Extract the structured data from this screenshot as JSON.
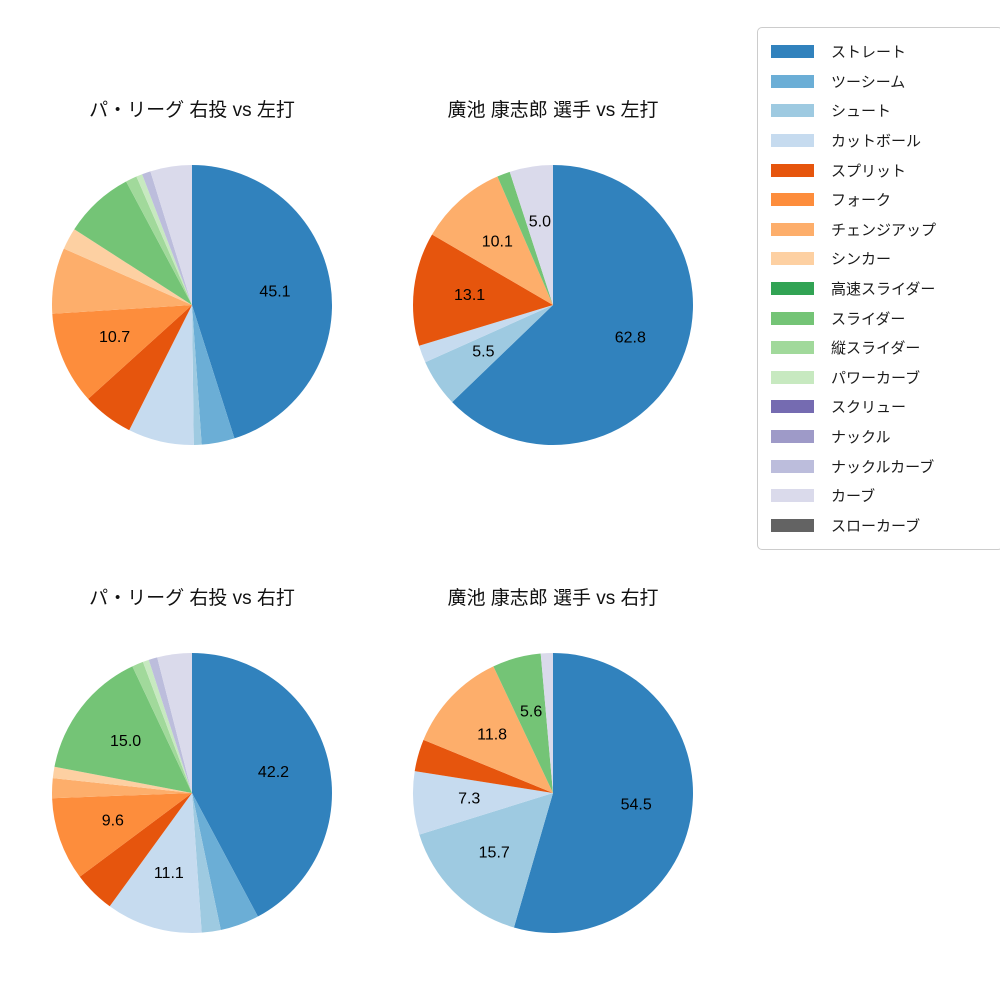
{
  "legend": {
    "items": [
      {
        "label": "ストレート",
        "color": "#3182bd"
      },
      {
        "label": "ツーシーム",
        "color": "#6baed6"
      },
      {
        "label": "シュート",
        "color": "#9ecae1"
      },
      {
        "label": "カットボール",
        "color": "#c6dbef"
      },
      {
        "label": "スプリット",
        "color": "#e6550d"
      },
      {
        "label": "フォーク",
        "color": "#fd8d3c"
      },
      {
        "label": "チェンジアップ",
        "color": "#fdae6b"
      },
      {
        "label": "シンカー",
        "color": "#fdd0a2"
      },
      {
        "label": "高速スライダー",
        "color": "#31a354"
      },
      {
        "label": "スライダー",
        "color": "#74c476"
      },
      {
        "label": "縦スライダー",
        "color": "#a1d99b"
      },
      {
        "label": "パワーカーブ",
        "color": "#c7e9c0"
      },
      {
        "label": "スクリュー",
        "color": "#756bb1"
      },
      {
        "label": "ナックル",
        "color": "#9e9ac8"
      },
      {
        "label": "ナックルカーブ",
        "color": "#bcbddc"
      },
      {
        "label": "カーブ",
        "color": "#dadaeb"
      },
      {
        "label": "スローカーブ",
        "color": "#636363"
      }
    ]
  },
  "chart_data": [
    {
      "type": "pie",
      "title": "パ・リーグ 右投 vs 左打",
      "start_angle": "top",
      "direction": "clockwise",
      "label_distance_ratio": 0.6,
      "slices": [
        {
          "name": "ストレート",
          "value": 45.1,
          "label": "45.1"
        },
        {
          "name": "ツーシーム",
          "value": 3.8,
          "label": ""
        },
        {
          "name": "シュート",
          "value": 0.9,
          "label": ""
        },
        {
          "name": "カットボール",
          "value": 7.6,
          "label": ""
        },
        {
          "name": "スプリット",
          "value": 5.9,
          "label": ""
        },
        {
          "name": "フォーク",
          "value": 10.7,
          "label": "10.7"
        },
        {
          "name": "チェンジアップ",
          "value": 7.6,
          "label": ""
        },
        {
          "name": "シンカー",
          "value": 2.5,
          "label": ""
        },
        {
          "name": "スライダー",
          "value": 8.1,
          "label": ""
        },
        {
          "name": "縦スライダー",
          "value": 1.3,
          "label": ""
        },
        {
          "name": "パワーカーブ",
          "value": 0.7,
          "label": ""
        },
        {
          "name": "ナックルカーブ",
          "value": 1.0,
          "label": ""
        },
        {
          "name": "カーブ",
          "value": 4.8,
          "label": ""
        }
      ]
    },
    {
      "type": "pie",
      "title": "廣池 康志郎 選手 vs 左打",
      "start_angle": "top",
      "direction": "clockwise",
      "label_distance_ratio": 0.6,
      "slices": [
        {
          "name": "ストレート",
          "value": 62.8,
          "label": "62.8"
        },
        {
          "name": "シュート",
          "value": 5.5,
          "label": "5.5"
        },
        {
          "name": "カットボール",
          "value": 2.0,
          "label": ""
        },
        {
          "name": "スプリット",
          "value": 13.1,
          "label": "13.1"
        },
        {
          "name": "チェンジアップ",
          "value": 10.1,
          "label": "10.1"
        },
        {
          "name": "スライダー",
          "value": 1.5,
          "label": ""
        },
        {
          "name": "カーブ",
          "value": 5.0,
          "label": "5.0"
        }
      ]
    },
    {
      "type": "pie",
      "title": "パ・リーグ 右投 vs 右打",
      "start_angle": "top",
      "direction": "clockwise",
      "label_distance_ratio": 0.6,
      "slices": [
        {
          "name": "ストレート",
          "value": 42.2,
          "label": "42.2"
        },
        {
          "name": "ツーシーム",
          "value": 4.5,
          "label": ""
        },
        {
          "name": "シュート",
          "value": 2.2,
          "label": ""
        },
        {
          "name": "カットボール",
          "value": 11.1,
          "label": "11.1"
        },
        {
          "name": "スプリット",
          "value": 4.8,
          "label": ""
        },
        {
          "name": "フォーク",
          "value": 9.6,
          "label": "9.6"
        },
        {
          "name": "チェンジアップ",
          "value": 2.3,
          "label": ""
        },
        {
          "name": "シンカー",
          "value": 1.3,
          "label": ""
        },
        {
          "name": "スライダー",
          "value": 15.0,
          "label": "15.0"
        },
        {
          "name": "縦スライダー",
          "value": 1.3,
          "label": ""
        },
        {
          "name": "パワーカーブ",
          "value": 0.7,
          "label": ""
        },
        {
          "name": "ナックルカーブ",
          "value": 1.0,
          "label": ""
        },
        {
          "name": "カーブ",
          "value": 4.0,
          "label": ""
        }
      ]
    },
    {
      "type": "pie",
      "title": "廣池 康志郎 選手 vs 右打",
      "start_angle": "top",
      "direction": "clockwise",
      "label_distance_ratio": 0.6,
      "slices": [
        {
          "name": "ストレート",
          "value": 54.5,
          "label": "54.5"
        },
        {
          "name": "シュート",
          "value": 15.7,
          "label": "15.7"
        },
        {
          "name": "カットボール",
          "value": 7.3,
          "label": "7.3"
        },
        {
          "name": "スプリット",
          "value": 3.7,
          "label": ""
        },
        {
          "name": "チェンジアップ",
          "value": 11.8,
          "label": "11.8"
        },
        {
          "name": "スライダー",
          "value": 5.6,
          "label": "5.6"
        },
        {
          "name": "カーブ",
          "value": 1.4,
          "label": ""
        }
      ]
    }
  ]
}
